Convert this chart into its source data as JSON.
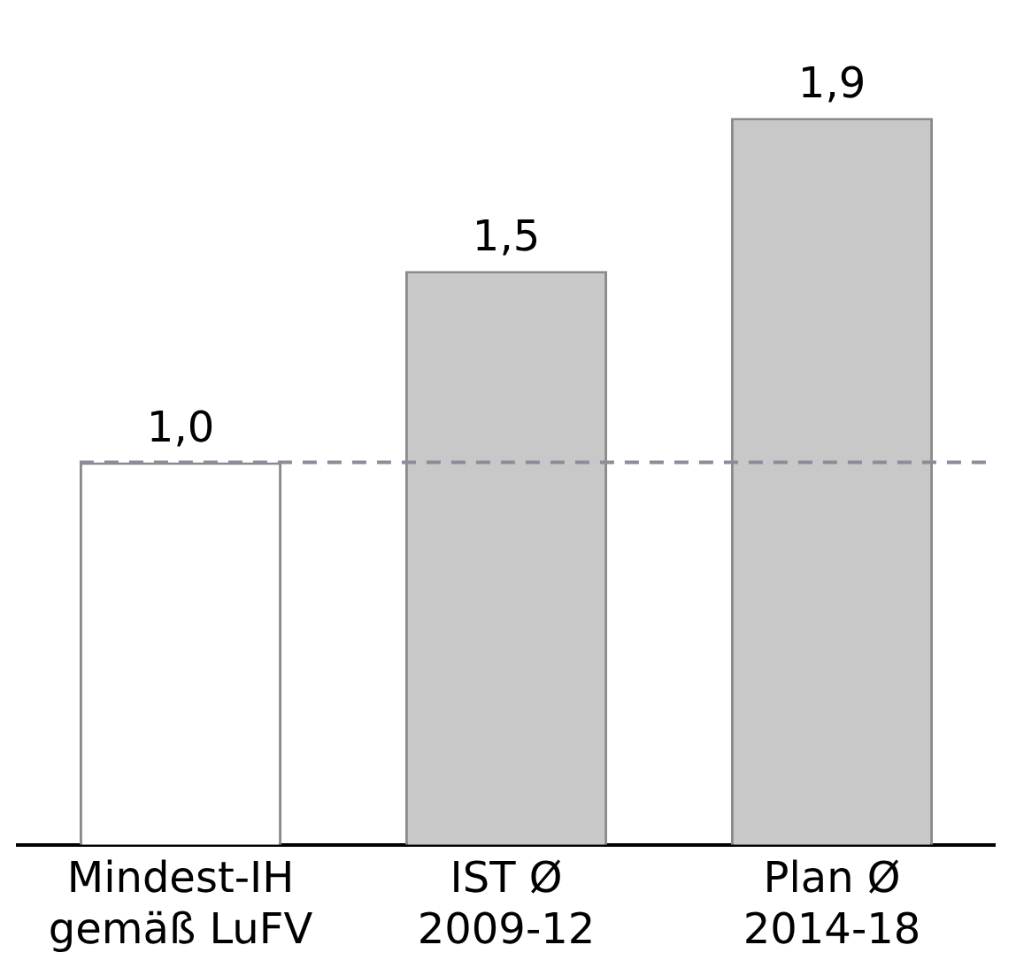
{
  "chart_data": {
    "type": "bar",
    "categories": [
      "Mindest-IH\ngemäß LuFV",
      "IST Ø\n2009-12",
      "Plan Ø\n2014-18"
    ],
    "values": [
      1.0,
      1.5,
      1.9
    ],
    "colors": [
      "#ffffff",
      "#c8c8c8",
      "#c8c8c8"
    ],
    "value_labels": [
      "1,0",
      "1,5",
      "1,9"
    ],
    "ref_lines": [
      {
        "axis": "y",
        "value": 1.0,
        "color": "#8c8c9a",
        "line_style": "dashed"
      }
    ],
    "grid": false,
    "legend": false
  }
}
